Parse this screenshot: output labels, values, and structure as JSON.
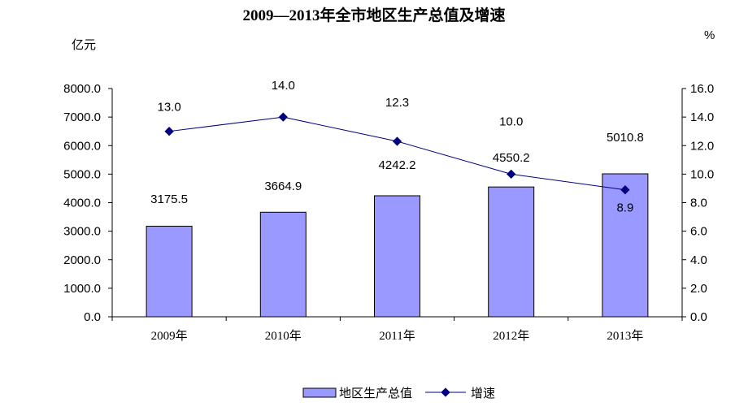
{
  "chart_data": {
    "type": "bar",
    "title": "2009—2013年全市地区生产总值及增速",
    "left_unit": "亿元",
    "right_unit": "%",
    "categories": [
      "2009年",
      "2010年",
      "2011年",
      "2012年",
      "2013年"
    ],
    "series": [
      {
        "name": "地区生产总值",
        "type": "bar",
        "axis": "left",
        "values": [
          3175.5,
          3664.9,
          4242.2,
          4550.2,
          5010.8
        ],
        "labels": [
          "3175.5",
          "3664.9",
          "4242.2",
          "4550.2",
          "5010.8"
        ],
        "color": "#9999ff"
      },
      {
        "name": "增速",
        "type": "line",
        "axis": "right",
        "values": [
          13.0,
          14.0,
          12.3,
          10.0,
          8.9
        ],
        "labels": [
          "13.0",
          "14.0",
          "12.3",
          "10.0",
          "8.9"
        ],
        "color": "#000080"
      }
    ],
    "y_left": {
      "min": 0,
      "max": 8000,
      "ticks": [
        0,
        1000,
        2000,
        3000,
        4000,
        5000,
        6000,
        7000,
        8000
      ],
      "tick_labels": [
        "0.0",
        "1000.0",
        "2000.0",
        "3000.0",
        "4000.0",
        "5000.0",
        "6000.0",
        "7000.0",
        "8000.0"
      ]
    },
    "y_right": {
      "min": 0,
      "max": 16,
      "ticks": [
        0,
        2,
        4,
        6,
        8,
        10,
        12,
        14,
        16
      ],
      "tick_labels": [
        "0.0",
        "2.0",
        "4.0",
        "6.0",
        "8.0",
        "10.0",
        "12.0",
        "14.0",
        "16.0"
      ]
    },
    "grid": false,
    "legend_position": "bottom"
  }
}
